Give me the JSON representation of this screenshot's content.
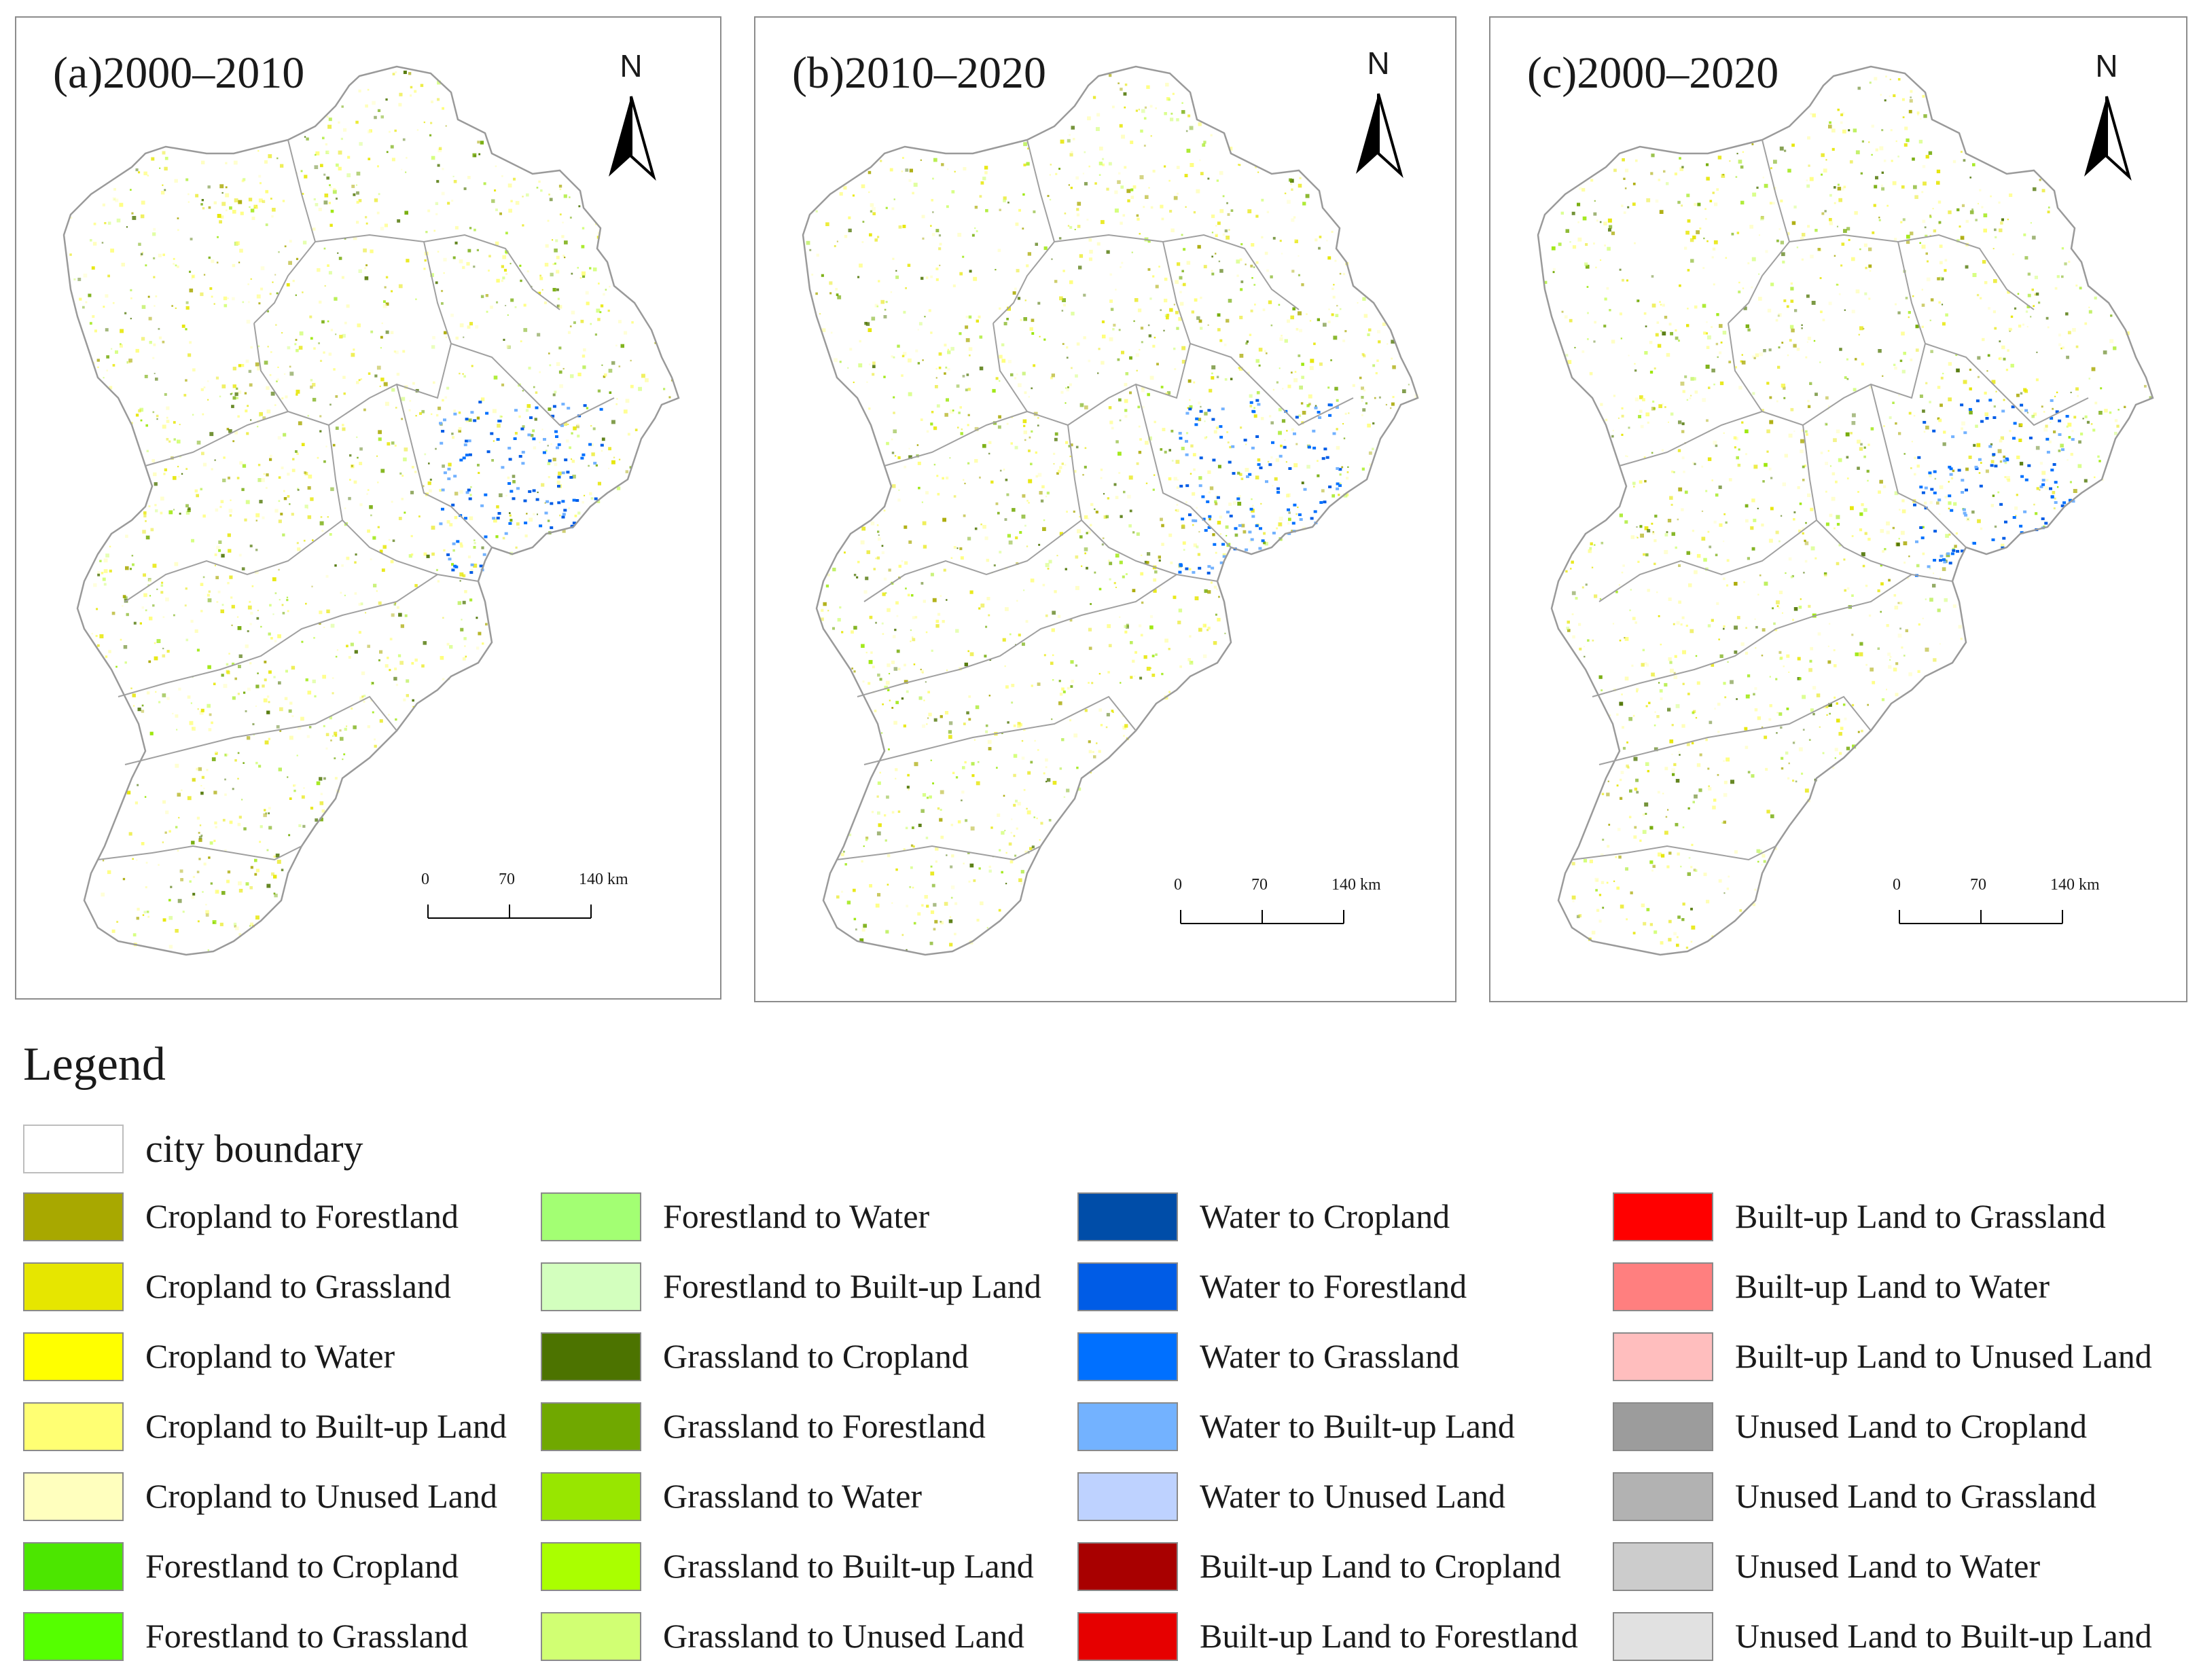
{
  "figure": {
    "panels": [
      {
        "id": "a",
        "title": "(a)2000–2010",
        "north_label": "N",
        "scale": {
          "ticks": [
            "0",
            "70",
            "140 km"
          ]
        }
      },
      {
        "id": "b",
        "title": "(b)2010–2020",
        "north_label": "N",
        "scale": {
          "ticks": [
            "0",
            "70",
            "140 km"
          ]
        }
      },
      {
        "id": "c",
        "title": "(c)2000–2020",
        "north_label": "N",
        "scale": {
          "ticks": [
            "0",
            "70",
            "140 km"
          ]
        }
      }
    ],
    "legend": {
      "title": "Legend",
      "boundary": {
        "label": "city boundary",
        "color": "#ffffff"
      },
      "items": [
        {
          "label": "Cropland to Forestland",
          "color": "#a8a800"
        },
        {
          "label": "Cropland to Grassland",
          "color": "#e6e600"
        },
        {
          "label": "Cropland to Water",
          "color": "#ffff00"
        },
        {
          "label": "Cropland to Built-up Land",
          "color": "#ffff73"
        },
        {
          "label": "Cropland to Unused Land",
          "color": "#ffffbe"
        },
        {
          "label": "Forestland to Cropland",
          "color": "#4ce600"
        },
        {
          "label": "Forestland to Grassland",
          "color": "#55ff00"
        },
        {
          "label": "Forestland to Water",
          "color": "#a3ff73"
        },
        {
          "label": "Forestland to Built-up Land",
          "color": "#d3ffbe"
        },
        {
          "label": "Grassland to Cropland",
          "color": "#4c7300"
        },
        {
          "label": "Grassland to Forestland",
          "color": "#70a800"
        },
        {
          "label": "Grassland to Water",
          "color": "#98e600"
        },
        {
          "label": "Grassland to Built-up Land",
          "color": "#aaff00"
        },
        {
          "label": "Grassland to Unused Land",
          "color": "#d1ff73"
        },
        {
          "label": "Water to Cropland",
          "color": "#004da8"
        },
        {
          "label": "Water to Forestland",
          "color": "#005ce6"
        },
        {
          "label": "Water to Grassland",
          "color": "#0070ff"
        },
        {
          "label": "Water to Built-up Land",
          "color": "#73b2ff"
        },
        {
          "label": "Water to Unused Land",
          "color": "#bed2ff"
        },
        {
          "label": "Built-up Land to Cropland",
          "color": "#a80000"
        },
        {
          "label": "Built-up Land to Forestland",
          "color": "#e60000"
        },
        {
          "label": "Built-up Land to Grassland",
          "color": "#ff0000"
        },
        {
          "label": "Built-up Land to Water",
          "color": "#ff7f7f"
        },
        {
          "label": "Built-up Land to Unused Land",
          "color": "#ffbebe"
        },
        {
          "label": "Unused Land to Cropland",
          "color": "#9c9c9c"
        },
        {
          "label": "Unused Land to Grassland",
          "color": "#b2b2b2"
        },
        {
          "label": "Unused Land to Water",
          "color": "#cccccc"
        },
        {
          "label": "Unused Land to Built-up Land",
          "color": "#e1e1e1"
        }
      ]
    }
  }
}
